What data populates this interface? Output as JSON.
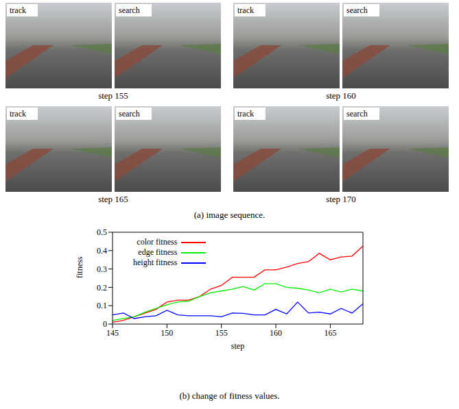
{
  "figure": {
    "image_sequence": {
      "caption": "(a) image sequence.",
      "frames": [
        {
          "step": "step 155",
          "views": [
            "track",
            "search"
          ]
        },
        {
          "step": "step 160",
          "views": [
            "track",
            "search"
          ]
        },
        {
          "step": "step 165",
          "views": [
            "track",
            "search"
          ]
        },
        {
          "step": "step 170",
          "views": [
            "track",
            "search"
          ]
        }
      ]
    },
    "chart_caption": "(b) change of fitness values."
  },
  "chart_data": {
    "type": "line",
    "x_label": "step",
    "y_label": "fitness",
    "x": [
      145,
      146,
      147,
      148,
      149,
      150,
      151,
      152,
      153,
      154,
      155,
      156,
      157,
      158,
      159,
      160,
      161,
      162,
      163,
      164,
      165,
      166,
      167,
      168
    ],
    "series": [
      {
        "name": "color fitness",
        "color": "#ff0000",
        "values": [
          0.01,
          0.02,
          0.04,
          0.06,
          0.08,
          0.12,
          0.13,
          0.13,
          0.15,
          0.19,
          0.21,
          0.255,
          0.255,
          0.255,
          0.295,
          0.295,
          0.31,
          0.33,
          0.34,
          0.385,
          0.35,
          0.365,
          0.37,
          0.425
        ]
      },
      {
        "name": "edge fitness",
        "color": "#00ee00",
        "values": [
          0.02,
          0.03,
          0.04,
          0.065,
          0.085,
          0.105,
          0.12,
          0.125,
          0.15,
          0.17,
          0.18,
          0.19,
          0.205,
          0.185,
          0.22,
          0.22,
          0.2,
          0.195,
          0.185,
          0.17,
          0.19,
          0.175,
          0.19,
          0.18
        ]
      },
      {
        "name": "height fitness",
        "color": "#0000ff",
        "values": [
          0.05,
          0.06,
          0.03,
          0.04,
          0.045,
          0.075,
          0.05,
          0.045,
          0.045,
          0.045,
          0.04,
          0.06,
          0.058,
          0.05,
          0.05,
          0.08,
          0.055,
          0.12,
          0.06,
          0.065,
          0.055,
          0.085,
          0.06,
          0.11
        ]
      }
    ],
    "xlim": [
      145,
      168
    ],
    "xticks": [
      145,
      150,
      155,
      160,
      165
    ],
    "ylim": [
      0,
      0.5
    ],
    "yticks": [
      0,
      0.1,
      0.2,
      0.3,
      0.4,
      0.5
    ],
    "legend": "upper left"
  }
}
